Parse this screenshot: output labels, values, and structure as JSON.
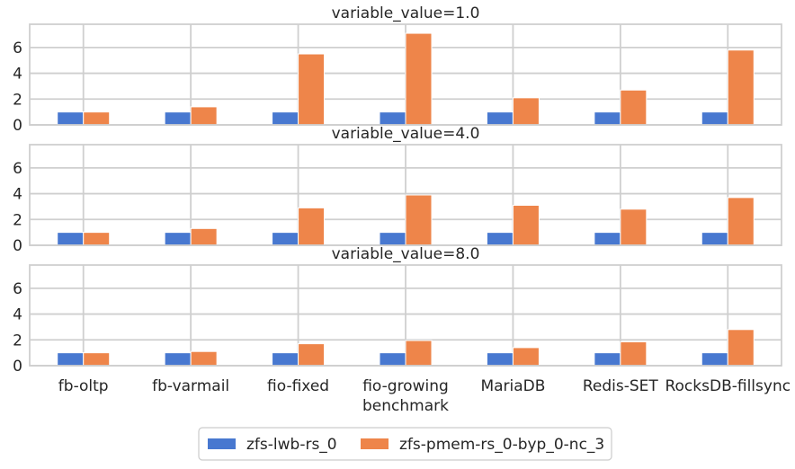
{
  "chart_data": {
    "type": "bar",
    "xlabel": "benchmark",
    "categories": [
      "fb-oltp",
      "fb-varmail",
      "fio-fixed",
      "fio-growing",
      "MariaDB",
      "Redis-SET",
      "RocksDB-fillsync"
    ],
    "ylim": [
      0,
      7.8
    ],
    "yticks": [
      0,
      2,
      4,
      6
    ],
    "grid": true,
    "legend_placement": "bottom-center",
    "legend": [
      {
        "name": "zfs-lwb-rs_0",
        "color": "#4878d0"
      },
      {
        "name": "zfs-pmem-rs_0-byp_0-nc_3",
        "color": "#ee854a"
      }
    ],
    "panels": [
      {
        "title": "variable_value=1.0",
        "series": [
          {
            "name": "zfs-lwb-rs_0",
            "values": [
              1.0,
              1.0,
              1.0,
              1.0,
              1.0,
              1.0,
              1.0
            ]
          },
          {
            "name": "zfs-pmem-rs_0-byp_0-nc_3",
            "values": [
              1.0,
              1.4,
              5.5,
              7.1,
              2.1,
              2.7,
              5.8
            ]
          }
        ]
      },
      {
        "title": "variable_value=4.0",
        "series": [
          {
            "name": "zfs-lwb-rs_0",
            "values": [
              1.0,
              1.0,
              1.0,
              1.0,
              1.0,
              1.0,
              1.0
            ]
          },
          {
            "name": "zfs-pmem-rs_0-byp_0-nc_3",
            "values": [
              1.0,
              1.3,
              2.9,
              3.9,
              3.1,
              2.8,
              3.7
            ]
          }
        ]
      },
      {
        "title": "variable_value=8.0",
        "series": [
          {
            "name": "zfs-lwb-rs_0",
            "values": [
              1.0,
              1.0,
              1.0,
              1.0,
              1.0,
              1.0,
              1.0
            ]
          },
          {
            "name": "zfs-pmem-rs_0-byp_0-nc_3",
            "values": [
              1.0,
              1.1,
              1.7,
              1.95,
              1.4,
              1.85,
              2.8
            ]
          }
        ]
      }
    ]
  }
}
